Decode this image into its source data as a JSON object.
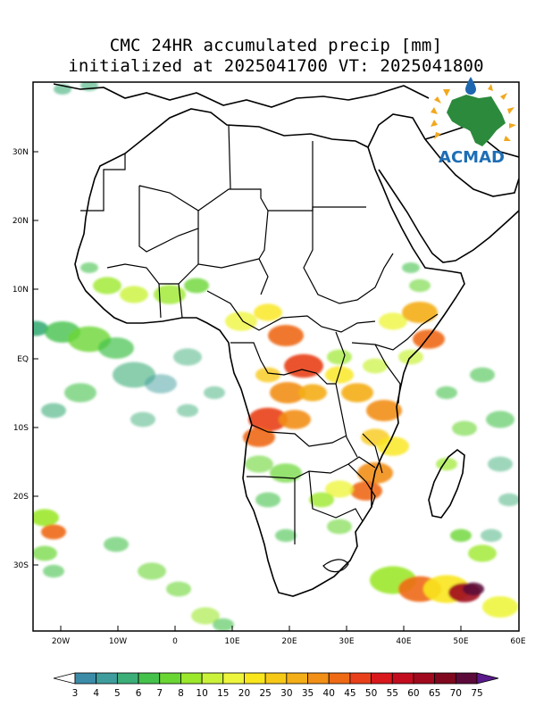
{
  "title_line1": "CMC 24HR accumulated precip [mm]",
  "title_line2": "initialized at 2025041700 VT: 2025041800",
  "logo_text": "ACMAD",
  "axes": {
    "x_ticks": [
      "20W",
      "10W",
      "0",
      "10E",
      "20E",
      "30E",
      "40E",
      "50E",
      "60E"
    ],
    "y_ticks": [
      "30N",
      "20N",
      "10N",
      "EQ",
      "10S",
      "20S",
      "30S"
    ]
  },
  "colorbar": {
    "levels": [
      "3",
      "4",
      "5",
      "6",
      "7",
      "8",
      "10",
      "15",
      "20",
      "25",
      "30",
      "35",
      "40",
      "45",
      "50",
      "55",
      "60",
      "65",
      "70",
      "75"
    ],
    "colors": [
      "#ffffff",
      "#3c8ca8",
      "#3f9d9d",
      "#3cae78",
      "#45c24c",
      "#6ad634",
      "#9ce82c",
      "#cbf23a",
      "#eef53d",
      "#fae61c",
      "#f7c917",
      "#f4ae17",
      "#f28f16",
      "#ee6a14",
      "#e8401b",
      "#d9181c",
      "#c30d1f",
      "#a10a1e",
      "#80081e",
      "#5c0a3a",
      "#5a1a8c"
    ]
  }
}
